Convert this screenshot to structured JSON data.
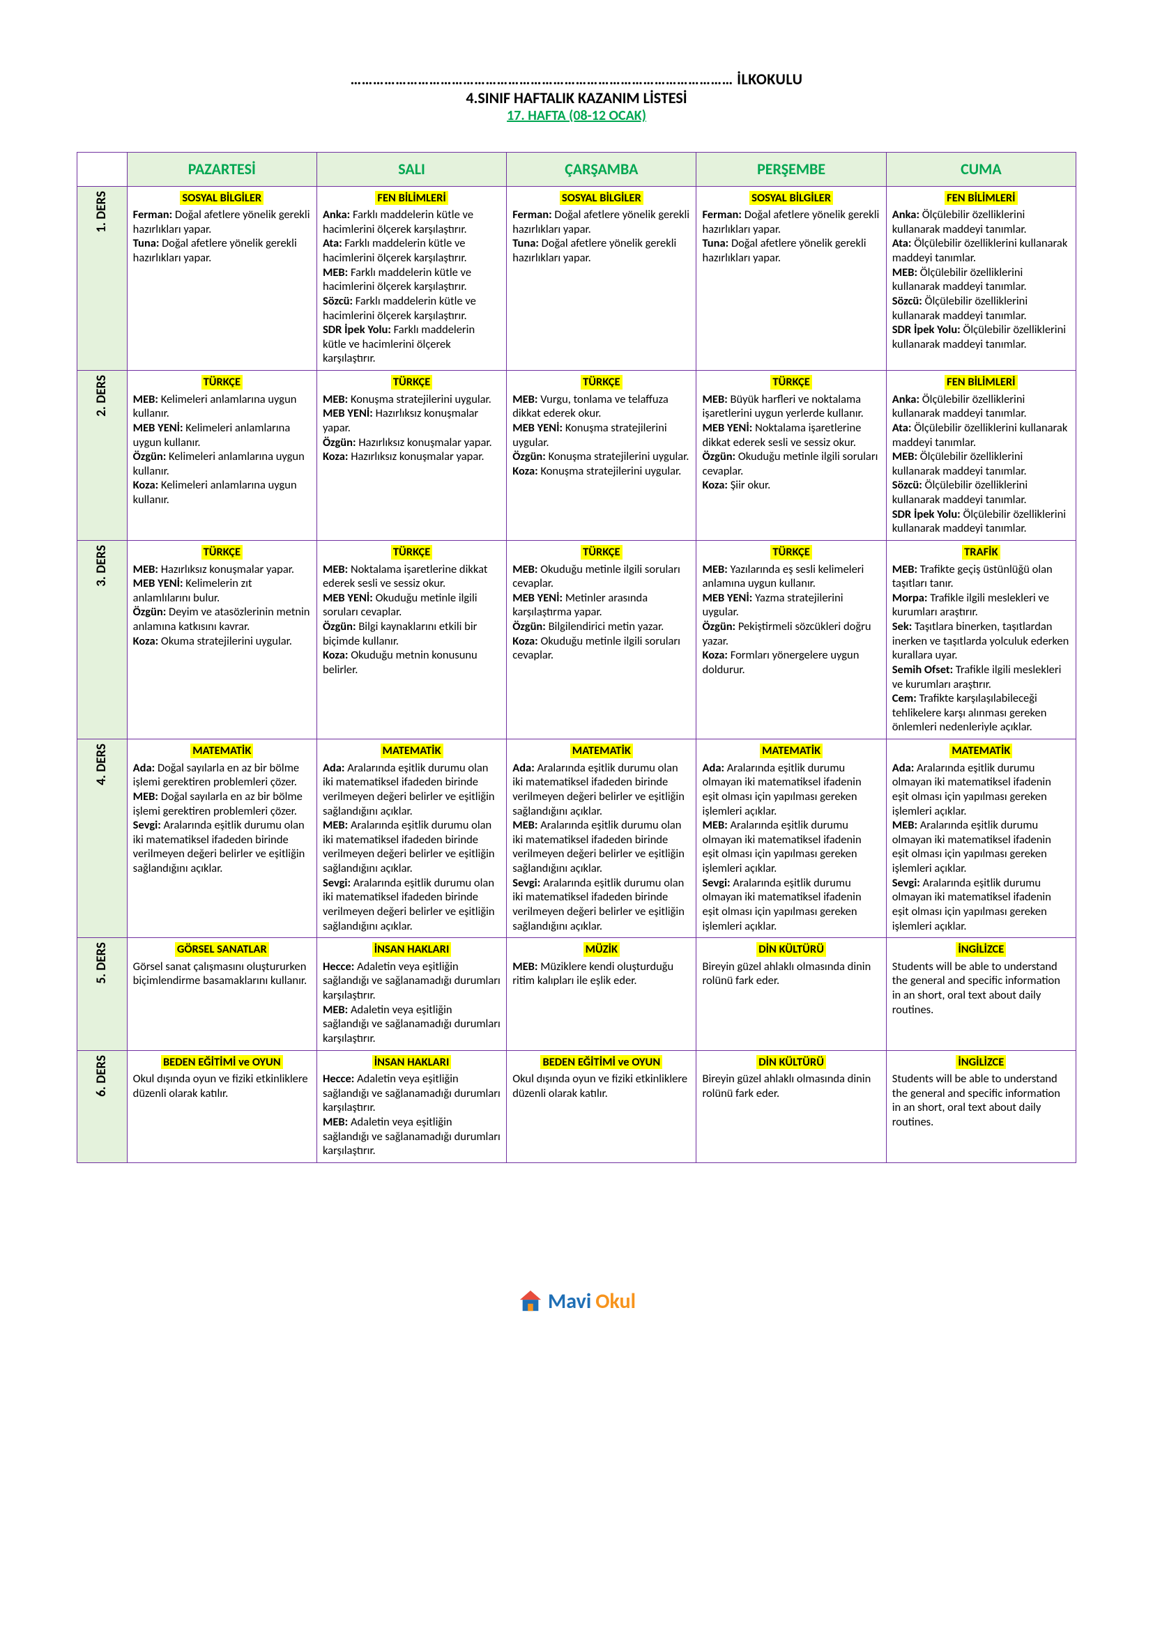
{
  "header": {
    "line1_prefix": "…………………………………………………………………………………………",
    "line1_suffix": " İLKOKULU",
    "line2": "4.SINIF HAFTALIK KAZANIM LİSTESİ",
    "line3": "17. HAFTA (08-12 OCAK)"
  },
  "days": [
    "PAZARTESİ",
    "SALI",
    "ÇARŞAMBA",
    "PERŞEMBE",
    "CUMA"
  ],
  "rows": [
    {
      "label": "1. DERS",
      "cells": [
        {
          "subject": "SOSYAL BİLGİLER",
          "entries": [
            {
              "pub": "Ferman",
              "text": "Doğal afetlere yönelik gerekli hazırlıkları yapar."
            },
            {
              "pub": "Tuna",
              "text": "Doğal afetlere yönelik gerekli hazırlıkları yapar."
            }
          ]
        },
        {
          "subject": "FEN BİLİMLERİ",
          "entries": [
            {
              "pub": "Anka",
              "text": "Farklı maddelerin kütle ve hacimlerini ölçerek karşılaştırır."
            },
            {
              "pub": "Ata",
              "text": "Farklı maddelerin kütle ve hacimlerini ölçerek karşılaştırır."
            },
            {
              "pub": "MEB",
              "text": "Farklı maddelerin kütle ve hacimlerini ölçerek karşılaştırır."
            },
            {
              "pub": "Sözcü",
              "text": "Farklı maddelerin kütle ve hacimlerini ölçerek karşılaştırır."
            },
            {
              "pub": "SDR İpek Yolu",
              "text": "Farklı maddelerin kütle ve hacimlerini ölçerek karşılaştırır."
            }
          ]
        },
        {
          "subject": "SOSYAL BİLGİLER",
          "entries": [
            {
              "pub": "Ferman",
              "text": "Doğal afetlere yönelik gerekli hazırlıkları yapar."
            },
            {
              "pub": "Tuna",
              "text": "Doğal afetlere yönelik gerekli hazırlıkları yapar."
            }
          ]
        },
        {
          "subject": "SOSYAL BİLGİLER",
          "entries": [
            {
              "pub": "Ferman",
              "text": "Doğal afetlere yönelik gerekli hazırlıkları yapar."
            },
            {
              "pub": "Tuna",
              "text": "Doğal afetlere yönelik gerekli hazırlıkları yapar."
            }
          ]
        },
        {
          "subject": "FEN BİLİMLERİ",
          "entries": [
            {
              "pub": "Anka",
              "text": "Ölçülebilir özelliklerini kullanarak maddeyi tanımlar."
            },
            {
              "pub": "Ata",
              "text": "Ölçülebilir özelliklerini kullanarak maddeyi tanımlar."
            },
            {
              "pub": "MEB",
              "text": "Ölçülebilir özelliklerini kullanarak maddeyi tanımlar."
            },
            {
              "pub": "Sözcü",
              "text": "Ölçülebilir özelliklerini kullanarak maddeyi tanımlar."
            },
            {
              "pub": "SDR İpek Yolu",
              "text": "Ölçülebilir özelliklerini kullanarak maddeyi tanımlar."
            }
          ]
        }
      ]
    },
    {
      "label": "2. DERS",
      "cells": [
        {
          "subject": "TÜRKÇE",
          "entries": [
            {
              "pub": "MEB",
              "text": "Kelimeleri anlamlarına uygun kullanır."
            },
            {
              "pub": "MEB YENİ",
              "text": "Kelimeleri anlamlarına uygun kullanır."
            },
            {
              "pub": "Özgün",
              "text": "Kelimeleri anlamlarına uygun kullanır."
            },
            {
              "pub": "Koza",
              "text": "Kelimeleri anlamlarına uygun kullanır."
            }
          ]
        },
        {
          "subject": "TÜRKÇE",
          "entries": [
            {
              "pub": "MEB",
              "text": "Konuşma stratejilerini uygular."
            },
            {
              "pub": "MEB YENİ",
              "text": "Hazırlıksız konuşmalar yapar."
            },
            {
              "pub": "Özgün",
              "text": "Hazırlıksız konuşmalar yapar."
            },
            {
              "pub": "Koza",
              "text": "Hazırlıksız konuşmalar yapar."
            }
          ]
        },
        {
          "subject": "TÜRKÇE",
          "entries": [
            {
              "pub": "MEB",
              "text": "Vurgu, tonlama ve telaffuza dikkat ederek okur."
            },
            {
              "pub": "MEB YENİ",
              "text": "Konuşma stratejilerini uygular."
            },
            {
              "pub": "Özgün",
              "text": "Konuşma stratejilerini uygular."
            },
            {
              "pub": "Koza",
              "text": "Konuşma stratejilerini uygular."
            }
          ]
        },
        {
          "subject": "TÜRKÇE",
          "entries": [
            {
              "pub": "MEB",
              "text": "Büyük harfleri ve noktalama işaretlerini uygun yerlerde kullanır."
            },
            {
              "pub": "MEB YENİ",
              "text": "Noktalama işaretlerine dikkat ederek sesli ve sessiz okur."
            },
            {
              "pub": "Özgün",
              "text": "Okuduğu metinle ilgili soruları cevaplar."
            },
            {
              "pub": "Koza",
              "text": "Şiir okur."
            }
          ]
        },
        {
          "subject": "FEN BİLİMLERİ",
          "entries": [
            {
              "pub": "Anka",
              "text": "Ölçülebilir özelliklerini kullanarak maddeyi tanımlar."
            },
            {
              "pub": "Ata",
              "text": "Ölçülebilir özelliklerini kullanarak maddeyi tanımlar."
            },
            {
              "pub": "MEB",
              "text": "Ölçülebilir özelliklerini kullanarak maddeyi tanımlar."
            },
            {
              "pub": "Sözcü",
              "text": "Ölçülebilir özelliklerini kullanarak maddeyi tanımlar."
            },
            {
              "pub": "SDR İpek Yolu",
              "text": "Ölçülebilir özelliklerini kullanarak maddeyi tanımlar."
            }
          ]
        }
      ]
    },
    {
      "label": "3. DERS",
      "cells": [
        {
          "subject": "TÜRKÇE",
          "entries": [
            {
              "pub": "MEB",
              "text": "Hazırlıksız konuşmalar yapar."
            },
            {
              "pub": "MEB YENİ",
              "text": "Kelimelerin zıt anlamlılarını bulur."
            },
            {
              "pub": "Özgün",
              "text": "Deyim ve atasözlerinin metnin anlamına katkısını kavrar."
            },
            {
              "pub": "Koza",
              "text": "Okuma stratejilerini uygular."
            }
          ]
        },
        {
          "subject": "TÜRKÇE",
          "entries": [
            {
              "pub": "MEB",
              "text": "Noktalama işaretlerine dikkat ederek sesli ve sessiz okur."
            },
            {
              "pub": "MEB YENİ",
              "text": "Okuduğu metinle ilgili soruları cevaplar."
            },
            {
              "pub": "Özgün",
              "text": "Bilgi kaynaklarını etkili bir biçimde kullanır."
            },
            {
              "pub": "Koza",
              "text": "Okuduğu metnin konusunu belirler."
            }
          ]
        },
        {
          "subject": "TÜRKÇE",
          "entries": [
            {
              "pub": "MEB",
              "text": "Okuduğu metinle ilgili soruları cevaplar."
            },
            {
              "pub": "MEB YENİ",
              "text": "Metinler arasında karşılaştırma yapar."
            },
            {
              "pub": "Özgün",
              "text": "Bilgilendirici metin yazar."
            },
            {
              "pub": "Koza",
              "text": "Okuduğu metinle ilgili soruları cevaplar."
            }
          ]
        },
        {
          "subject": "TÜRKÇE",
          "entries": [
            {
              "pub": "MEB",
              "text": "Yazılarında eş sesli kelimeleri anlamına uygun kullanır."
            },
            {
              "pub": "MEB YENİ",
              "text": "Yazma stratejilerini uygular."
            },
            {
              "pub": "Özgün",
              "text": "Pekiştirmeli sözcükleri doğru yazar."
            },
            {
              "pub": "Koza",
              "text": "Formları yönergelere uygun doldurur."
            }
          ]
        },
        {
          "subject": "TRAFİK",
          "entries": [
            {
              "pub": "MEB",
              "text": "Trafikte geçiş üstünlüğü olan taşıtları tanır."
            },
            {
              "pub": "Morpa",
              "text": "Trafikle ilgili meslekleri ve kurumları araştırır."
            },
            {
              "pub": "Sek",
              "text": "Taşıtlara binerken, taşıtlardan inerken ve taşıtlarda yolculuk ederken kurallara uyar."
            },
            {
              "pub": "Semih Ofset",
              "text": "Trafikle ilgili meslekleri ve kurumları araştırır."
            },
            {
              "pub": "Cem",
              "text": "Trafikte karşılaşılabileceği tehlikelere karşı alınması gereken önlemleri nedenleriyle açıklar."
            }
          ]
        }
      ]
    },
    {
      "label": "4. DERS",
      "cells": [
        {
          "subject": "MATEMATİK",
          "entries": [
            {
              "pub": "Ada",
              "text": "Doğal sayılarla en az bir bölme işlemi gerektiren problemleri çözer."
            },
            {
              "pub": "MEB",
              "text": "Doğal sayılarla en az bir bölme işlemi gerektiren problemleri çözer."
            },
            {
              "pub": "Sevgi",
              "text": "Aralarında eşitlik durumu olan iki matematiksel ifadeden birinde verilmeyen değeri belirler ve eşitliğin sağlandığını açıklar."
            }
          ]
        },
        {
          "subject": "MATEMATİK",
          "entries": [
            {
              "pub": "Ada",
              "text": "Aralarında eşitlik durumu olan iki matematiksel ifadeden birinde verilmeyen değeri belirler ve eşitliğin sağlandığını açıklar."
            },
            {
              "pub": "MEB",
              "text": "Aralarında eşitlik durumu olan iki matematiksel ifadeden birinde verilmeyen değeri belirler ve eşitliğin sağlandığını açıklar."
            },
            {
              "pub": "Sevgi",
              "text": "Aralarında eşitlik durumu olan iki matematiksel ifadeden birinde verilmeyen değeri belirler ve eşitliğin sağlandığını açıklar."
            }
          ]
        },
        {
          "subject": "MATEMATİK",
          "entries": [
            {
              "pub": "Ada",
              "text": "Aralarında eşitlik durumu olan iki matematiksel ifadeden birinde verilmeyen değeri belirler ve eşitliğin sağlandığını açıklar."
            },
            {
              "pub": "MEB",
              "text": "Aralarında eşitlik durumu olan iki matematiksel ifadeden birinde verilmeyen değeri belirler ve eşitliğin sağlandığını açıklar."
            },
            {
              "pub": "Sevgi",
              "text": "Aralarında eşitlik durumu olan iki matematiksel ifadeden birinde verilmeyen değeri belirler ve eşitliğin sağlandığını açıklar."
            }
          ]
        },
        {
          "subject": "MATEMATİK",
          "entries": [
            {
              "pub": "Ada",
              "text": "Aralarında eşitlik durumu olmayan iki matematiksel ifadenin eşit olması için yapılması gereken işlemleri açıklar."
            },
            {
              "pub": "MEB",
              "text": "Aralarında eşitlik durumu olmayan iki matematiksel ifadenin eşit olması için yapılması gereken işlemleri açıklar."
            },
            {
              "pub": "Sevgi",
              "text": "Aralarında eşitlik durumu olmayan iki matematiksel ifadenin eşit olması için yapılması gereken işlemleri açıklar."
            }
          ]
        },
        {
          "subject": "MATEMATİK",
          "entries": [
            {
              "pub": "Ada",
              "text": "Aralarında eşitlik durumu olmayan iki matematiksel ifadenin eşit olması için yapılması gereken işlemleri açıklar."
            },
            {
              "pub": "MEB",
              "text": "Aralarında eşitlik durumu olmayan iki matematiksel ifadenin eşit olması için yapılması gereken işlemleri açıklar."
            },
            {
              "pub": "Sevgi",
              "text": "Aralarında eşitlik durumu olmayan iki matematiksel ifadenin eşit olması için yapılması gereken işlemleri açıklar."
            }
          ]
        }
      ]
    },
    {
      "label": "5. DERS",
      "cells": [
        {
          "subject": "GÖRSEL SANATLAR",
          "entries": [
            {
              "pub": "",
              "text": "Görsel sanat çalışmasını oluştururken biçimlendirme basamaklarını kullanır."
            }
          ]
        },
        {
          "subject": "İNSAN HAKLARI",
          "entries": [
            {
              "pub": "Hecce",
              "text": "Adaletin veya eşitliğin sağlandığı ve sağlanamadığı durumları karşılaştırır."
            },
            {
              "pub": "MEB",
              "text": "Adaletin veya eşitliğin sağlandığı ve sağlanamadığı durumları karşılaştırır."
            }
          ]
        },
        {
          "subject": "MÜZİK",
          "entries": [
            {
              "pub": "MEB",
              "text": "Müziklere kendi oluşturduğu ritim kalıpları ile eşlik eder."
            }
          ]
        },
        {
          "subject": "DİN KÜLTÜRÜ",
          "entries": [
            {
              "pub": "",
              "text": "Bireyin güzel ahlaklı olmasında dinin rolünü fark eder."
            }
          ]
        },
        {
          "subject": "İNGİLİZCE",
          "entries": [
            {
              "pub": "",
              "text": "Students will be able to understand the general and specific information in an short, oral text about daily routines."
            }
          ]
        }
      ]
    },
    {
      "label": "6. DERS",
      "cells": [
        {
          "subject": "BEDEN EĞİTİMİ ve OYUN",
          "entries": [
            {
              "pub": "",
              "text": "Okul dışında oyun ve fiziki etkinliklere düzenli olarak katılır."
            }
          ]
        },
        {
          "subject": "İNSAN HAKLARI",
          "entries": [
            {
              "pub": "Hecce",
              "text": "Adaletin veya eşitliğin sağlandığı ve sağlanamadığı durumları karşılaştırır."
            },
            {
              "pub": "MEB",
              "text": "Adaletin veya eşitliğin sağlandığı ve sağlanamadığı durumları karşılaştırır."
            }
          ]
        },
        {
          "subject": "BEDEN EĞİTİMİ ve OYUN",
          "entries": [
            {
              "pub": "",
              "text": "Okul dışında oyun ve fiziki etkinliklere düzenli olarak katılır."
            }
          ]
        },
        {
          "subject": "DİN KÜLTÜRÜ",
          "entries": [
            {
              "pub": "",
              "text": "Bireyin güzel ahlaklı olmasında dinin rolünü fark eder."
            }
          ]
        },
        {
          "subject": "İNGİLİZCE",
          "entries": [
            {
              "pub": "",
              "text": "Students will be able to understand the general and specific information in an short, oral text about daily routines."
            }
          ]
        }
      ]
    }
  ],
  "logo": {
    "brand1": "Mavi",
    "brand2": "Okul"
  },
  "colors": {
    "border": "#7030a0",
    "headerBg": "#e4f2dc",
    "dayText": "#00a651",
    "highlight": "#ffff00"
  }
}
